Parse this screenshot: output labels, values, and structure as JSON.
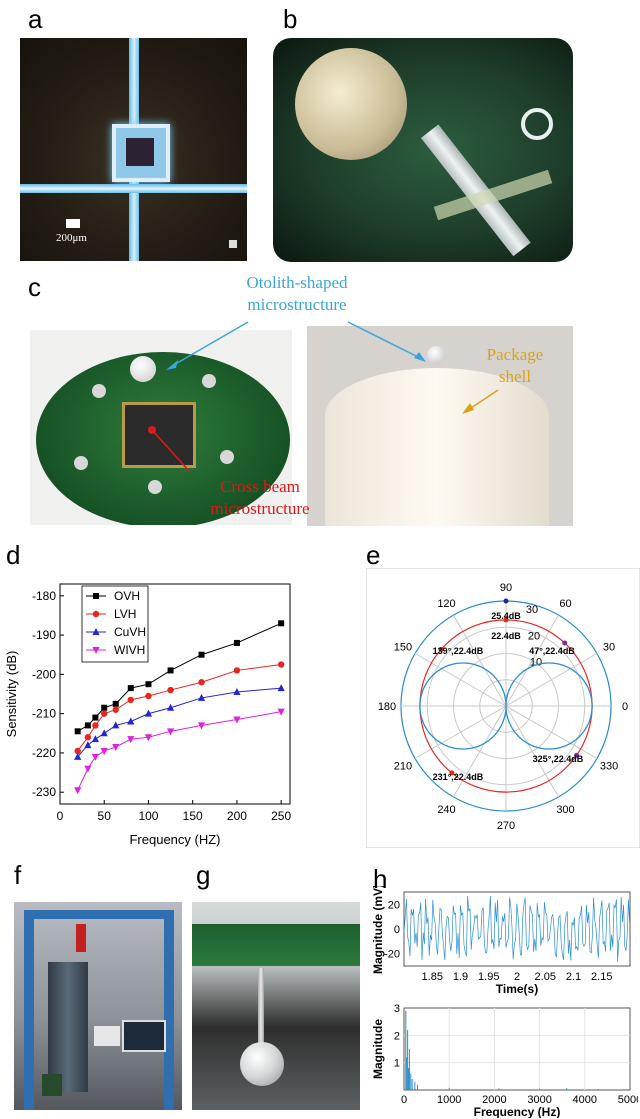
{
  "panel_labels": {
    "a": "a",
    "b": "b",
    "c": "c",
    "d": "d",
    "e": "e",
    "f": "f",
    "g": "g",
    "h": "h"
  },
  "panel_a": {
    "scale_bar": "200μm"
  },
  "panel_c": {
    "otolith_label": "Otolith-shaped microstructure",
    "package_label": "Package shell",
    "cross_beam_label": "Cross beam microstructure",
    "colors": {
      "otolith": "#3aa6d8",
      "package": "#d9a21b",
      "cross_beam": "#e01818"
    }
  },
  "chart_data": [
    {
      "type": "line",
      "xlabel": "Frequency (HZ)",
      "ylabel": "Sensitivity (dB)",
      "xlim": [
        0,
        260
      ],
      "ylim": [
        -233,
        -177
      ],
      "x_ticks": [
        0,
        50,
        100,
        150,
        200,
        250
      ],
      "y_ticks": [
        -180,
        -190,
        -200,
        -210,
        -220,
        -230
      ],
      "legend_position": "top-left",
      "x": [
        20,
        31.5,
        40,
        50,
        63,
        80,
        100,
        125,
        160,
        200,
        250
      ],
      "series": [
        {
          "name": "OVH",
          "color": "#000000",
          "marker": "square",
          "values": [
            -214.5,
            -213,
            -211,
            -208.5,
            -207.5,
            -203.5,
            -202.5,
            -199,
            -195,
            -192,
            -187
          ]
        },
        {
          "name": "LVH",
          "color": "#e8251f",
          "marker": "circle",
          "values": [
            -219.5,
            -216,
            -213,
            -210,
            -209,
            -206.5,
            -205.5,
            -204,
            -202,
            -199,
            -197.5
          ]
        },
        {
          "name": "CuVH",
          "color": "#2424d8",
          "marker": "triangle",
          "values": [
            -221,
            -218,
            -216.5,
            -215,
            -213,
            -212,
            -210,
            -208.5,
            -206,
            -204.5,
            -203.5
          ]
        },
        {
          "name": "WIVH",
          "color": "#e020e0",
          "marker": "triangle-down",
          "values": [
            -229.5,
            -224,
            -221,
            -219.5,
            -218.5,
            -216.5,
            -216,
            -214.5,
            -213,
            -211.5,
            -209.5
          ]
        }
      ]
    },
    {
      "type": "polar",
      "angle_labels": [
        "90",
        "60",
        "30",
        "0",
        "330",
        "300",
        "270",
        "240",
        "210",
        "180",
        "150",
        "120"
      ],
      "radius_labels": [
        "30",
        "20",
        "10"
      ],
      "annotations": [
        "25.4dB",
        "22.4dB",
        "139°,22.4dB",
        "47°,22.4dB",
        "231°,22.4dB",
        "325°,22.4dB"
      ],
      "colors": {
        "circle": "#e8251f",
        "figure_eight": "#2c8fcf",
        "grid": "#b8b8b8"
      }
    },
    {
      "type": "line",
      "xlabel": "Time(s)",
      "ylabel": "Magnitude (mV)",
      "xlim": [
        1.8,
        2.2
      ],
      "ylim": [
        -30,
        30
      ],
      "x_ticks": [
        "1.85",
        "1.9",
        "1.95",
        "2",
        "2.05",
        "2.1",
        "2.15"
      ],
      "y_ticks": [
        "20",
        "0",
        "-20"
      ],
      "color": "#2c8fcf"
    },
    {
      "type": "bar",
      "xlabel": "Frequency (Hz)",
      "ylabel": "Magnitude",
      "xlim": [
        0,
        5000
      ],
      "ylim": [
        0,
        3
      ],
      "x_ticks": [
        "0",
        "1000",
        "2000",
        "3000",
        "4000",
        "5000"
      ],
      "y_ticks": [
        "3",
        "2",
        "1"
      ],
      "color": "#2c8fcf"
    }
  ]
}
